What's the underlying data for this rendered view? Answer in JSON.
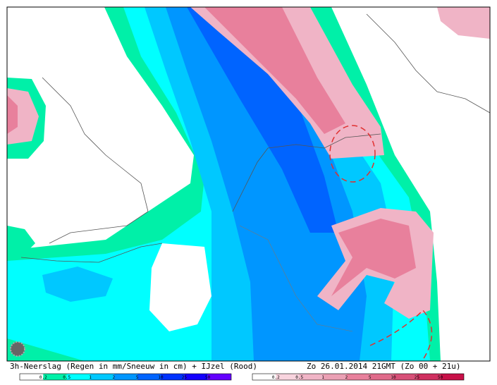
{
  "map": {
    "caption": "3h-Neerslag (Regen in mm/Sneeuw in cm) + IJzel (Rood)",
    "timestamp": "Zo 26.01.2014 21GMT (Zo 00 + 21u)"
  },
  "legends": [
    {
      "labels": [
        0.2,
        0.5,
        1,
        2,
        5,
        10,
        25,
        50
      ],
      "colors": [
        "#ffffff",
        "#00f0a8",
        "#00ffff",
        "#00c8ff",
        "#0096ff",
        "#0064ff",
        "#0032ff",
        "#1400ff",
        "#6400ff"
      ]
    },
    {
      "labels": [
        0.2,
        0.5,
        1,
        2,
        5,
        10,
        25,
        50
      ],
      "colors": [
        "#ffffff",
        "#f8d4de",
        "#f0b4c6",
        "#eba0b4",
        "#e8809c",
        "#e06a8a",
        "#d85078",
        "#d03060",
        "#c81048"
      ]
    }
  ]
}
